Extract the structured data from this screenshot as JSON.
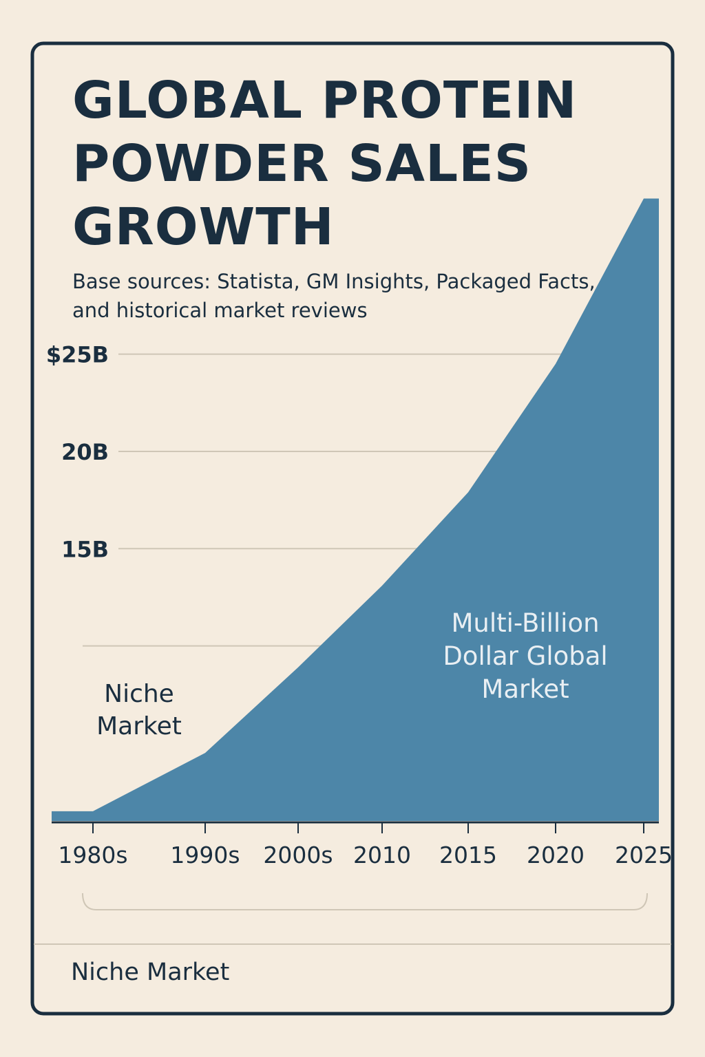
{
  "chart_data": {
    "type": "area",
    "title": "GLOBAL PROTEIN POWDER SALES GROWTH",
    "subtitle": "Base sources: Statista, GM Insights, Packaged Facts, and historical market reviews",
    "categories": [
      "1980s",
      "1990s",
      "2000s",
      "2010",
      "2015",
      "2020",
      "2025"
    ],
    "values": [
      1.5,
      4.5,
      8.9,
      13.1,
      17.9,
      24.5,
      33
    ],
    "color": "#4d86a8",
    "ylim": [
      1,
      35
    ],
    "yticks": [
      {
        "value": 25,
        "label": "$25B"
      },
      {
        "value": 20,
        "label": "20B"
      },
      {
        "value": 15,
        "label": "15B"
      },
      {
        "value": 10,
        "label": null
      }
    ],
    "grid": true,
    "annotations": [
      "Niche Market",
      "Multi-Billion Dollar Global Market"
    ],
    "footer": "Niche Market"
  }
}
